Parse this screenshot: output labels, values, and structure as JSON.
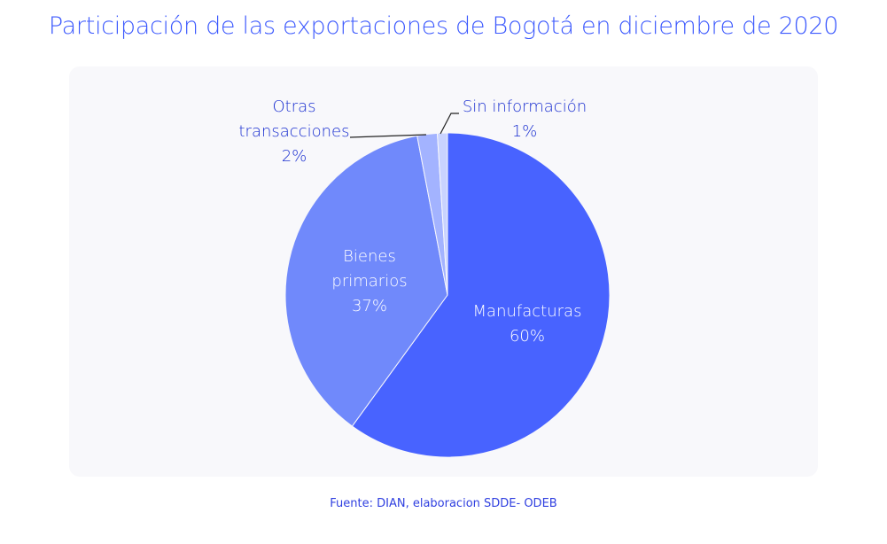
{
  "chart_data": {
    "type": "pie",
    "title": "Participación de las exportaciones de Bogotá en diciembre de 2020",
    "source": "Fuente: DIAN, elaboracion SDDE- ODEB",
    "slices": [
      {
        "label_lines": [
          "Manufacturas"
        ],
        "pct_label": "60%",
        "value": 60,
        "color": "#4863ff"
      },
      {
        "label_lines": [
          "Bienes",
          "primarios"
        ],
        "pct_label": "37%",
        "value": 37,
        "color": "#7089fb"
      },
      {
        "label_lines": [
          "Otras",
          "transacciones"
        ],
        "pct_label": "2%",
        "value": 2,
        "color": "#a3b3ff"
      },
      {
        "label_lines": [
          "Sin información"
        ],
        "pct_label": "1%",
        "value": 1,
        "color": "#c9d3ff"
      }
    ]
  }
}
